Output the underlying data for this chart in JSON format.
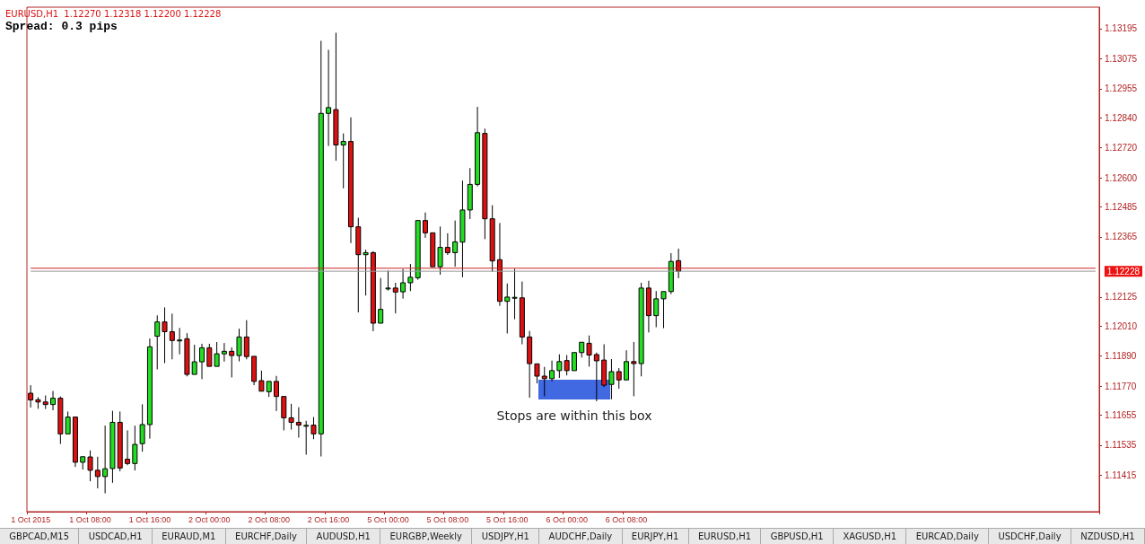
{
  "chart_data": {
    "type": "candlestick",
    "title": "EURUSD,H1  1.12270 1.12318 1.12200 1.12228",
    "subtitle": "Spread: 0.3 pips",
    "categories": [
      "1 Oct 2015",
      null,
      null,
      null,
      null,
      null,
      null,
      null,
      "1 Oct 08:00",
      null,
      null,
      null,
      null,
      null,
      null,
      null,
      "1 Oct 16:00",
      null,
      null,
      null,
      null,
      null,
      null,
      null,
      "2 Oct 00:00",
      null,
      null,
      null,
      null,
      null,
      null,
      null,
      "2 Oct 08:00",
      null,
      null,
      null,
      null,
      null,
      null,
      null,
      "2 Oct 16:00",
      null,
      null,
      null,
      null,
      null,
      null,
      null,
      "5 Oct 00:00",
      null,
      null,
      null,
      null,
      null,
      null,
      null,
      "5 Oct 08:00",
      null,
      null,
      null,
      null,
      null,
      null,
      null,
      "5 Oct 16:00",
      null,
      null,
      null,
      null,
      null,
      null,
      null,
      "6 Oct 00:00",
      null,
      null,
      null,
      null,
      null,
      null,
      null,
      "6 Oct 08:00",
      null,
      null,
      null,
      null,
      null,
      null,
      null,
      null,
      null,
      null,
      null,
      null,
      null,
      null,
      null,
      null,
      null,
      null,
      null,
      null,
      null,
      null,
      null,
      null,
      null,
      null,
      null,
      null,
      null,
      null,
      null,
      null,
      null,
      null,
      null,
      null,
      null,
      null,
      null,
      null,
      null,
      null,
      null,
      null,
      null,
      null,
      null,
      null,
      null,
      null,
      null,
      null,
      null,
      null,
      null,
      null,
      null,
      null,
      null,
      null,
      null,
      null,
      null
    ],
    "ohlc": [
      [
        1.11742,
        1.11774,
        1.11685,
        1.11715
      ],
      [
        1.11716,
        1.11726,
        1.1168,
        1.11707
      ],
      [
        1.11707,
        1.11733,
        1.11679,
        1.11697
      ],
      [
        1.11697,
        1.11751,
        1.11674,
        1.11722
      ],
      [
        1.11722,
        1.11729,
        1.1154,
        1.1158
      ],
      [
        1.1158,
        1.11669,
        1.1158,
        1.11647
      ],
      [
        1.11647,
        1.11647,
        1.11448,
        1.11467
      ],
      [
        1.11467,
        1.11493,
        1.11438,
        1.11489
      ],
      [
        1.11488,
        1.11514,
        1.11391,
        1.11435
      ],
      [
        1.11435,
        1.11489,
        1.11363,
        1.1141
      ],
      [
        1.1141,
        1.11613,
        1.11343,
        1.11441
      ],
      [
        1.11442,
        1.11672,
        1.11385,
        1.11626
      ],
      [
        1.11626,
        1.11669,
        1.11431,
        1.11444
      ],
      [
        1.11479,
        1.11594,
        1.11455,
        1.11462
      ],
      [
        1.11462,
        1.11613,
        1.11434,
        1.11538
      ],
      [
        1.11541,
        1.11698,
        1.11509,
        1.11617
      ],
      [
        1.11617,
        1.1196,
        1.11561,
        1.11927
      ],
      [
        1.11969,
        1.12052,
        1.11837,
        1.12026
      ],
      [
        1.12026,
        1.12084,
        1.11862,
        1.11987
      ],
      [
        1.11987,
        1.12059,
        1.11877,
        1.11952
      ],
      [
        1.11954,
        1.12002,
        1.11897,
        1.11954
      ],
      [
        1.11959,
        1.11981,
        1.11809,
        1.11817
      ],
      [
        1.11817,
        1.11935,
        1.11815,
        1.11867
      ],
      [
        1.11867,
        1.11939,
        1.11798,
        1.11923
      ],
      [
        1.11923,
        1.11939,
        1.11849,
        1.11849
      ],
      [
        1.11849,
        1.11946,
        1.11849,
        1.11899
      ],
      [
        1.11899,
        1.11942,
        1.11868,
        1.11909
      ],
      [
        1.11909,
        1.11925,
        1.11805,
        1.11892
      ],
      [
        1.11892,
        1.11999,
        1.11869,
        1.11966
      ],
      [
        1.11966,
        1.12033,
        1.11877,
        1.11888
      ],
      [
        1.11889,
        1.11889,
        1.11774,
        1.11789
      ],
      [
        1.11792,
        1.11832,
        1.11748,
        1.1175
      ],
      [
        1.11748,
        1.11792,
        1.11727,
        1.11789
      ],
      [
        1.11789,
        1.11811,
        1.11671,
        1.11729
      ],
      [
        1.11729,
        1.11729,
        1.11594,
        1.11644
      ],
      [
        1.11644,
        1.117,
        1.11597,
        1.11626
      ],
      [
        1.11626,
        1.11686,
        1.11565,
        1.11615
      ],
      [
        1.11614,
        1.11632,
        1.11497,
        1.11614
      ],
      [
        1.11615,
        1.11647,
        1.11559,
        1.1158
      ],
      [
        1.1158,
        1.13146,
        1.1149,
        1.12857
      ],
      [
        1.12857,
        1.1311,
        1.12727,
        1.1288
      ],
      [
        1.12872,
        1.13178,
        1.12668,
        1.12731
      ],
      [
        1.12731,
        1.12777,
        1.12558,
        1.12745
      ],
      [
        1.12745,
        1.12841,
        1.1234,
        1.12405
      ],
      [
        1.12405,
        1.12441,
        1.12064,
        1.12294
      ],
      [
        1.12294,
        1.12314,
        1.12131,
        1.12302
      ],
      [
        1.12302,
        1.12308,
        1.11989,
        1.12021
      ],
      [
        1.12021,
        1.12201,
        1.12019,
        1.12076
      ],
      [
        1.12161,
        1.12231,
        1.12151,
        1.12161
      ],
      [
        1.12161,
        1.12182,
        1.1206,
        1.12145
      ],
      [
        1.12146,
        1.12237,
        1.12119,
        1.12182
      ],
      [
        1.12182,
        1.12257,
        1.12149,
        1.12204
      ],
      [
        1.12202,
        1.1243,
        1.12194,
        1.1243
      ],
      [
        1.1243,
        1.12462,
        1.12361,
        1.12381
      ],
      [
        1.12381,
        1.12381,
        1.12241,
        1.12246
      ],
      [
        1.12246,
        1.12406,
        1.12214,
        1.12323
      ],
      [
        1.12323,
        1.12379,
        1.12293,
        1.12302
      ],
      [
        1.12302,
        1.1243,
        1.12246,
        1.12345
      ],
      [
        1.12344,
        1.12589,
        1.12204,
        1.12472
      ],
      [
        1.12472,
        1.12639,
        1.12436,
        1.12574
      ],
      [
        1.12574,
        1.12883,
        1.12566,
        1.1278
      ],
      [
        1.12777,
        1.12796,
        1.12356,
        1.12437
      ],
      [
        1.12437,
        1.12491,
        1.12226,
        1.12269
      ],
      [
        1.12274,
        1.1242,
        1.1209,
        1.12108
      ],
      [
        1.12108,
        1.12179,
        1.1198,
        1.12125
      ],
      [
        1.12124,
        1.12238,
        1.12037,
        1.12124
      ],
      [
        1.12122,
        1.12187,
        1.11937,
        1.11966
      ],
      [
        1.11966,
        1.1199,
        1.11724,
        1.1186
      ],
      [
        1.11859,
        1.11859,
        1.11781,
        1.1181
      ],
      [
        1.1181,
        1.11847,
        1.1173,
        1.118
      ],
      [
        1.118,
        1.11872,
        1.11789,
        1.11832
      ],
      [
        1.11832,
        1.11897,
        1.11803,
        1.11868
      ],
      [
        1.11872,
        1.11894,
        1.11813,
        1.11832
      ],
      [
        1.11832,
        1.11904,
        1.11832,
        1.11904
      ],
      [
        1.11904,
        1.11945,
        1.11884,
        1.11945
      ],
      [
        1.11941,
        1.11972,
        1.11848,
        1.11894
      ],
      [
        1.11896,
        1.11904,
        1.1171,
        1.11871
      ],
      [
        1.11874,
        1.11937,
        1.11766,
        1.11774
      ],
      [
        1.11777,
        1.11878,
        1.11718,
        1.11828
      ],
      [
        1.11828,
        1.11842,
        1.1176,
        1.11795
      ],
      [
        1.11795,
        1.11913,
        1.11795,
        1.11868
      ],
      [
        1.11868,
        1.11946,
        1.1173,
        1.1186
      ],
      [
        1.1186,
        1.12182,
        1.11809,
        1.12161
      ],
      [
        1.12161,
        1.1219,
        1.11984,
        1.12051
      ],
      [
        1.12051,
        1.12149,
        1.12005,
        1.12118
      ],
      [
        1.12118,
        1.12149,
        1.12001,
        1.12147
      ],
      [
        1.12147,
        1.123,
        1.12137,
        1.12267
      ],
      [
        1.1227,
        1.12318,
        1.122,
        1.12228
      ],
      null,
      null,
      null,
      null,
      null,
      null,
      null,
      null,
      null,
      null,
      null,
      null,
      null,
      null,
      null,
      null,
      null,
      null,
      null,
      null,
      null,
      null,
      null,
      null,
      null,
      null,
      null,
      null,
      null,
      null,
      null,
      null,
      null,
      null,
      null,
      null,
      null,
      null,
      null,
      null,
      null,
      null,
      null,
      null,
      null,
      null,
      null,
      null,
      null,
      null,
      null,
      null,
      null,
      null,
      null,
      null
    ],
    "ylim": [
      1.1127,
      1.1328
    ],
    "yticks": [
      {
        "value": 1.13195,
        "label": "1.13195"
      },
      {
        "value": 1.13075,
        "label": "1.13075"
      },
      {
        "value": 1.12955,
        "label": "1.12955"
      },
      {
        "value": 1.1284,
        "label": "1.12840"
      },
      {
        "value": 1.1272,
        "label": "1.12720"
      },
      {
        "value": 1.126,
        "label": "1.12600"
      },
      {
        "value": 1.12485,
        "label": "1.12485"
      },
      {
        "value": 1.12365,
        "label": "1.12365"
      },
      {
        "value": 1.12125,
        "label": "1.12125"
      },
      {
        "value": 1.1201,
        "label": "1.12010"
      },
      {
        "value": 1.1189,
        "label": "1.11890"
      },
      {
        "value": 1.1177,
        "label": "1.11770"
      },
      {
        "value": 1.11655,
        "label": "1.11655"
      },
      {
        "value": 1.11535,
        "label": "1.11535"
      },
      {
        "value": 1.11415,
        "label": "1.11415"
      }
    ],
    "ref_lines": [
      {
        "axis": "y",
        "value": 1.1224,
        "color": "#cc2222"
      },
      {
        "axis": "y",
        "value": 1.12228,
        "label": "1.12228",
        "color": "#999999"
      }
    ],
    "annotations": [
      "Stops are within this box",
      "GBPCAD,M15",
      "USDCAD,H1",
      "EURAUD,M1",
      "EURCHF,Daily",
      "AUDUSD,H1",
      "EURGBP,Weekly",
      "USDJPY,H1",
      "AUDCHF,Daily",
      "EURJPY,H1",
      "EURUSD,H1",
      "GBPUSD,H1",
      "XAGUSD,H1",
      "EURCAD,Daily",
      "USDCHF,Daily",
      "NZDUSD,H1"
    ],
    "grid": false
  }
}
